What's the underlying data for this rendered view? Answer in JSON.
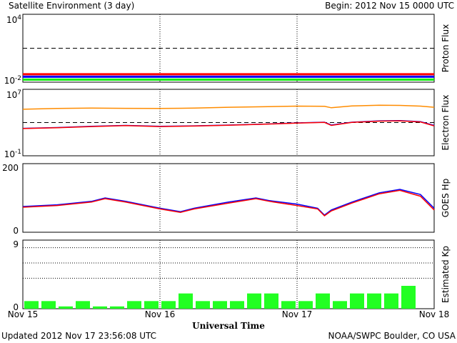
{
  "header": {
    "title": "Satellite Environment (3 day)",
    "begin": "Begin:  2012 Nov 15 0000 UTC"
  },
  "footer": {
    "updated": "Updated 2012 Nov 17 23:56:08 UTC",
    "credit": "NOAA/SWPC Boulder, CO USA"
  },
  "x_axis": {
    "label": "Universal Time",
    "ticks": [
      "Nov 15",
      "Nov 16",
      "Nov 17",
      "Nov 18"
    ],
    "range_days": [
      0,
      3
    ]
  },
  "colors": {
    "red": "#ff0000",
    "blue": "#0000ff",
    "green": "#00ee00",
    "orange": "#ff8c00",
    "kp_bar": "#22ff22"
  },
  "chart_data": [
    {
      "type": "line",
      "ylabel": "Proton Flux",
      "y_scale": "log",
      "ylim": [
        0.01,
        10000
      ],
      "ytick_base": "10",
      "ytick_exps": [
        "4",
        "-2"
      ],
      "threshold": 10,
      "series": [
        {
          "color": "red",
          "x": [
            0,
            0.5,
            1,
            1.5,
            2,
            2.5,
            3
          ],
          "y": [
            0.05,
            0.05,
            0.05,
            0.05,
            0.05,
            0.05,
            0.05
          ]
        },
        {
          "color": "blue",
          "x": [
            0,
            0.5,
            1,
            1.5,
            2,
            2.5,
            3
          ],
          "y": [
            0.03,
            0.03,
            0.03,
            0.03,
            0.03,
            0.03,
            0.03
          ]
        },
        {
          "color": "green",
          "x": [
            0,
            0.5,
            1,
            1.5,
            2,
            2.5,
            3
          ],
          "y": [
            0.017,
            0.017,
            0.017,
            0.017,
            0.017,
            0.017,
            0.017
          ]
        }
      ]
    },
    {
      "type": "line",
      "ylabel": "Electron Flux",
      "y_scale": "log",
      "ylim": [
        0.1,
        10000000
      ],
      "ytick_base": "10",
      "ytick_exps": [
        "7",
        "-1"
      ],
      "threshold": 1000,
      "series": [
        {
          "color": "orange",
          "x": [
            0,
            0.25,
            0.5,
            0.75,
            1,
            1.25,
            1.5,
            1.75,
            2,
            2.2,
            2.25,
            2.4,
            2.6,
            2.75,
            2.9,
            3
          ],
          "y": [
            40000,
            50000,
            55000,
            52000,
            50000,
            55000,
            70000,
            80000,
            95000,
            90000,
            60000,
            100000,
            120000,
            115000,
            95000,
            70000
          ]
        },
        {
          "color": "blue",
          "x": [
            0,
            0.25,
            0.5,
            0.75,
            1,
            1.25,
            1.5,
            1.75,
            2,
            2.2,
            2.25,
            2.4,
            2.6,
            2.75,
            2.9,
            3
          ],
          "y": [
            200,
            250,
            350,
            450,
            350,
            400,
            500,
            650,
            900,
            1100,
            500,
            1100,
            1600,
            1700,
            1300,
            450
          ]
        },
        {
          "color": "red",
          "x": [
            0,
            0.25,
            0.5,
            0.75,
            1,
            1.25,
            1.5,
            1.75,
            2,
            2.2,
            2.25,
            2.4,
            2.6,
            2.75,
            2.9,
            3
          ],
          "y": [
            190,
            240,
            330,
            430,
            330,
            380,
            480,
            620,
            850,
            1050,
            450,
            1050,
            1500,
            1600,
            1200,
            400
          ]
        }
      ]
    },
    {
      "type": "line",
      "ylabel": "GOES Hp",
      "ylim": [
        0,
        200
      ],
      "yticks": [
        "200",
        "0"
      ],
      "series": [
        {
          "color": "blue",
          "x": [
            0,
            0.25,
            0.5,
            0.6,
            0.75,
            1,
            1.15,
            1.25,
            1.5,
            1.7,
            1.8,
            2,
            2.15,
            2.2,
            2.25,
            2.4,
            2.6,
            2.75,
            2.9,
            3
          ],
          "y": [
            75,
            80,
            90,
            100,
            90,
            70,
            60,
            70,
            88,
            100,
            92,
            82,
            70,
            50,
            65,
            88,
            115,
            125,
            110,
            70
          ]
        },
        {
          "color": "red",
          "x": [
            0,
            0.25,
            0.5,
            0.6,
            0.75,
            1,
            1.15,
            1.25,
            1.5,
            1.7,
            1.8,
            2,
            2.15,
            2.2,
            2.25,
            2.4,
            2.6,
            2.75,
            2.9,
            3
          ],
          "y": [
            73,
            78,
            88,
            98,
            88,
            68,
            58,
            68,
            85,
            98,
            90,
            78,
            68,
            48,
            62,
            85,
            112,
            122,
            105,
            65
          ]
        }
      ]
    },
    {
      "type": "bar",
      "ylabel": "Estimated Kp",
      "ylim": [
        0,
        9
      ],
      "yticks": [
        "9",
        "0"
      ],
      "grid_levels": [
        4,
        6,
        8
      ],
      "x": [
        0,
        0.125,
        0.25,
        0.375,
        0.5,
        0.625,
        0.75,
        0.875,
        1,
        1.125,
        1.25,
        1.375,
        1.5,
        1.625,
        1.75,
        1.875,
        2,
        2.125,
        2.25,
        2.375,
        2.5,
        2.625,
        2.75,
        2.875
      ],
      "values": [
        1,
        1,
        0.3,
        1,
        0.3,
        0.3,
        1,
        1,
        1,
        2,
        1,
        1,
        1,
        2,
        2,
        1,
        1,
        2,
        1,
        2,
        2,
        2,
        3,
        0
      ]
    }
  ]
}
